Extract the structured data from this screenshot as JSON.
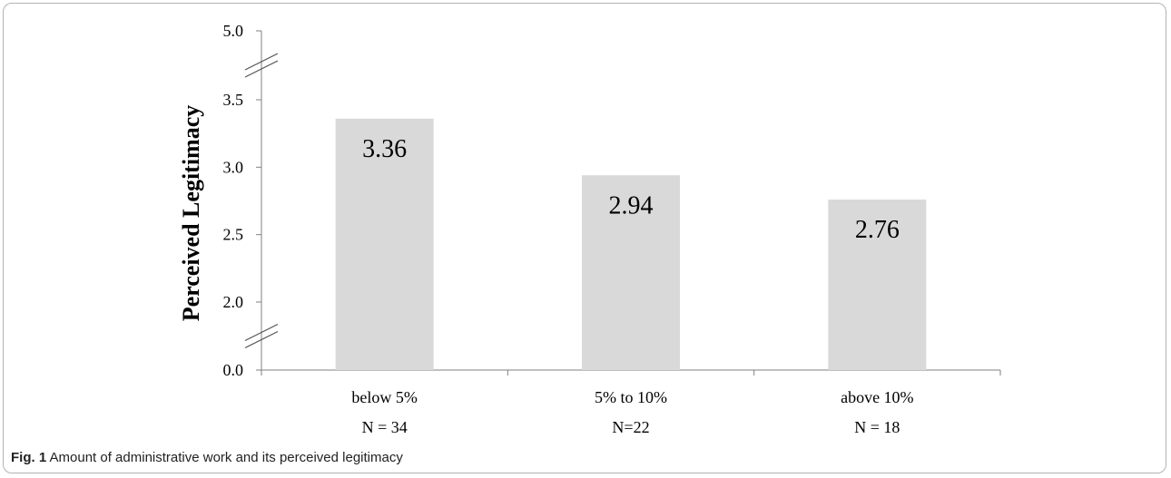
{
  "chart_data": {
    "type": "bar",
    "ylabel": "Perceived Legitimacy",
    "categories": [
      "below 5%",
      "5% to 10%",
      "above 10%"
    ],
    "sample_sizes": [
      "N = 34",
      "N=22",
      "N = 18"
    ],
    "values": [
      3.36,
      2.94,
      2.76
    ],
    "value_labels": [
      "3.36",
      "2.94",
      "2.76"
    ],
    "yticks": [
      {
        "value": 0.0,
        "label": "0.0"
      },
      {
        "value": 2.0,
        "label": "2.0"
      },
      {
        "value": 2.5,
        "label": "2.5"
      },
      {
        "value": 3.0,
        "label": "3.0"
      },
      {
        "value": 3.5,
        "label": "3.5"
      },
      {
        "value": 5.0,
        "label": "5.0"
      }
    ],
    "ylim": [
      0,
      5
    ],
    "axis_breaks": true,
    "grid": false,
    "bar_color": "#d9d9d9"
  },
  "caption": {
    "label": "Fig. 1",
    "text": "Amount of administrative work and its perceived legitimacy"
  }
}
